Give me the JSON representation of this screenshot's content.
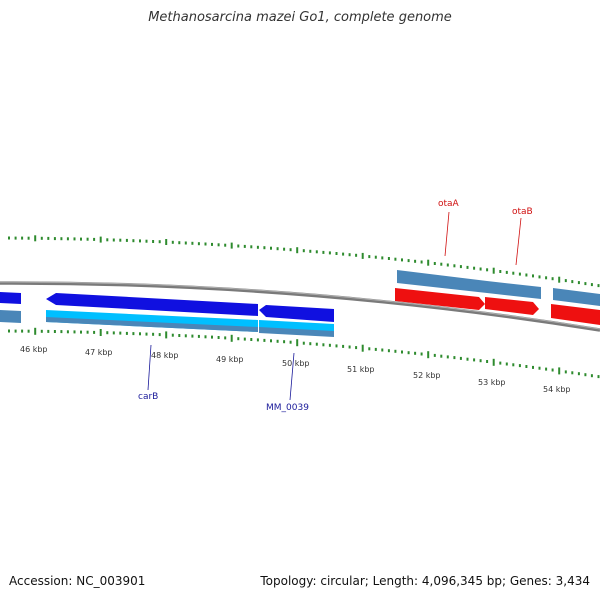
{
  "title": "Methanosarcina mazei Go1, complete genome",
  "footer": {
    "accession": "Accession: NC_003901",
    "summary": "Topology: circular; Length: 4,096,345 bp; Genes: 3,434"
  },
  "colors": {
    "forward_cds": "#1010e0",
    "forward_gene": "#00bfff",
    "reverse_cds": "#ee1010",
    "gene_blue": "#4a86b8",
    "tick": "#2e8b2e",
    "backbone": "#7a7a7a",
    "label_blue": "#1a1a9a",
    "label_red": "#d01010"
  },
  "ruler": {
    "labels": [
      "46 kbp",
      "47 kbp",
      "48 kbp",
      "49 kbp",
      "50 kbp",
      "51 kbp",
      "52 kbp",
      "53 kbp",
      "54 kbp"
    ]
  },
  "genes": {
    "carB": "carB",
    "mm0039": "MM_0039",
    "otaA": "otaA",
    "otaB": "otaB"
  }
}
